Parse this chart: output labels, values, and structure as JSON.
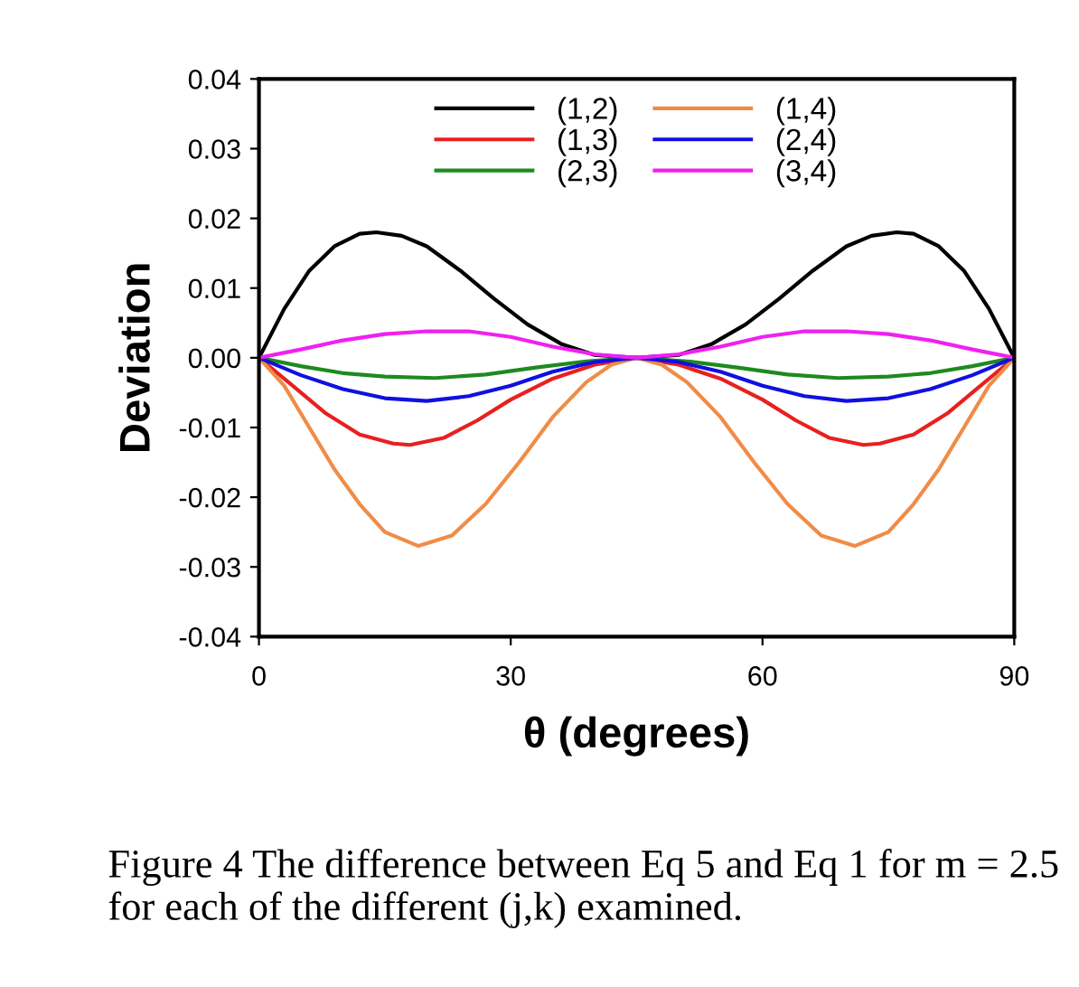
{
  "chart_data": {
    "type": "line",
    "xlabel": "θ (degrees)",
    "ylabel": "Deviation",
    "xlim": [
      0,
      90
    ],
    "xticks": [
      0,
      30,
      60,
      90
    ],
    "ylim": [
      -0.04,
      0.04
    ],
    "yticks": [
      -0.04,
      -0.03,
      -0.02,
      -0.01,
      {
        "value": 0,
        "label": "0.00"
      },
      0.01,
      0.02,
      0.03,
      0.04
    ],
    "grid": false,
    "legend": "top",
    "marker": "none",
    "line_style": "solid",
    "annotations": [
      "Figure 4 The difference between Eq 5 and Eq 1 for m = 2.5 for each of the different (j,k) examined."
    ],
    "series": [
      {
        "name": "(1,2)",
        "color": "#000000",
        "x": [
          0,
          3,
          6,
          9,
          12,
          14,
          17,
          20,
          24,
          28,
          32,
          36,
          40,
          45,
          50,
          54,
          58,
          62,
          66,
          70,
          73,
          76,
          78,
          81,
          84,
          87,
          90
        ],
        "values": [
          0,
          0.007,
          0.0125,
          0.016,
          0.0178,
          0.018,
          0.0175,
          0.016,
          0.0125,
          0.0085,
          0.0048,
          0.002,
          0.0004,
          0,
          0.0004,
          0.002,
          0.0048,
          0.0085,
          0.0125,
          0.016,
          0.0175,
          0.018,
          0.0178,
          0.016,
          0.0125,
          0.007,
          0
        ]
      },
      {
        "name": "(1,3)",
        "color": "#e8201e",
        "x": [
          0,
          4,
          8,
          12,
          16,
          18,
          22,
          26,
          30,
          35,
          40,
          45,
          50,
          55,
          60,
          64,
          68,
          72,
          74,
          78,
          82,
          86,
          90
        ],
        "values": [
          0,
          -0.004,
          -0.008,
          -0.011,
          -0.0123,
          -0.0125,
          -0.0115,
          -0.009,
          -0.006,
          -0.003,
          -0.001,
          0,
          -0.001,
          -0.003,
          -0.006,
          -0.009,
          -0.0115,
          -0.0125,
          -0.0123,
          -0.011,
          -0.008,
          -0.004,
          0
        ]
      },
      {
        "name": "(2,3)",
        "color": "#1e8a1e",
        "x": [
          0,
          5,
          10,
          15,
          21,
          27,
          33,
          39,
          45,
          51,
          57,
          63,
          69,
          75,
          80,
          85,
          90
        ],
        "values": [
          0,
          -0.0012,
          -0.0022,
          -0.0027,
          -0.0029,
          -0.0024,
          -0.0014,
          -0.0005,
          0,
          -0.0005,
          -0.0014,
          -0.0024,
          -0.0029,
          -0.0027,
          -0.0022,
          -0.0012,
          0
        ]
      },
      {
        "name": "(1,4)",
        "color": "#f08c46",
        "x": [
          0,
          3,
          6,
          9,
          12,
          15,
          19,
          23,
          27,
          31,
          35,
          39,
          42,
          45,
          48,
          51,
          55,
          59,
          63,
          67,
          71,
          75,
          78,
          81,
          84,
          87,
          90
        ],
        "values": [
          0,
          -0.004,
          -0.01,
          -0.016,
          -0.021,
          -0.025,
          -0.027,
          -0.0255,
          -0.021,
          -0.015,
          -0.0085,
          -0.0035,
          -0.001,
          0,
          -0.001,
          -0.0035,
          -0.0085,
          -0.015,
          -0.021,
          -0.0255,
          -0.027,
          -0.025,
          -0.021,
          -0.016,
          -0.01,
          -0.004,
          0
        ]
      },
      {
        "name": "(2,4)",
        "color": "#1010e0",
        "x": [
          0,
          5,
          10,
          15,
          20,
          25,
          30,
          35,
          40,
          45,
          50,
          55,
          60,
          65,
          70,
          75,
          80,
          85,
          90
        ],
        "values": [
          0,
          -0.0025,
          -0.0045,
          -0.0058,
          -0.0062,
          -0.0055,
          -0.004,
          -0.002,
          -0.0006,
          0,
          -0.0006,
          -0.002,
          -0.004,
          -0.0055,
          -0.0062,
          -0.0058,
          -0.0045,
          -0.0025,
          0
        ]
      },
      {
        "name": "(3,4)",
        "color": "#f020f0",
        "x": [
          0,
          5,
          10,
          15,
          20,
          25,
          30,
          35,
          40,
          45,
          50,
          55,
          60,
          65,
          70,
          75,
          80,
          85,
          90
        ],
        "values": [
          0,
          0.0012,
          0.0025,
          0.0034,
          0.0038,
          0.0038,
          0.003,
          0.0016,
          0.0005,
          0,
          0.0005,
          0.0016,
          0.003,
          0.0038,
          0.0038,
          0.0034,
          0.0025,
          0.0012,
          0
        ]
      }
    ]
  }
}
